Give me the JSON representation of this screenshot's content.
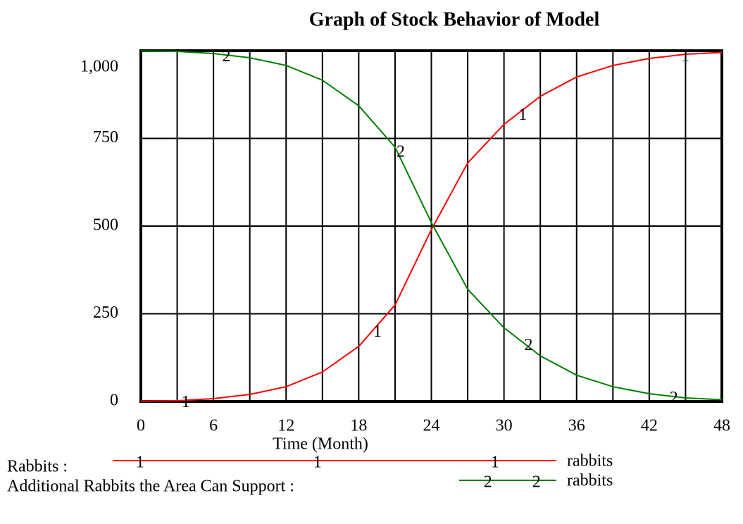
{
  "chart_data": {
    "type": "line",
    "title": "Graph of Stock Behavior of Model",
    "x_label": "Time (Month)",
    "x": [
      0,
      3,
      6,
      9,
      12,
      15,
      18,
      21,
      24,
      27,
      30,
      33,
      36,
      39,
      42,
      45,
      48
    ],
    "series": [
      {
        "name": "Rabbits :",
        "marker": "1",
        "unit": "rabbits",
        "color": "#ff0000",
        "values": [
          1,
          2,
          8,
          20,
          42,
          84,
          157,
          275,
          490,
          680,
          790,
          870,
          925,
          958,
          978,
          990,
          995
        ]
      },
      {
        "name": "Additional Rabbits the Area Can Support :",
        "marker": "2",
        "unit": "rabbits",
        "color": "#008000",
        "values": [
          999,
          998,
          992,
          980,
          958,
          916,
          843,
          725,
          510,
          320,
          210,
          130,
          75,
          42,
          22,
          10,
          5
        ]
      }
    ],
    "xlim": [
      0,
      48
    ],
    "xticks": [
      0,
      6,
      12,
      18,
      24,
      30,
      36,
      42,
      48
    ],
    "xgrid": [
      3,
      9,
      15,
      21,
      27,
      33,
      39,
      45
    ],
    "ylim": [
      0,
      1000
    ],
    "yticks": [
      0,
      250,
      500,
      750,
      {
        "value": 1000,
        "label": "1,000"
      }
    ],
    "grid": true
  }
}
